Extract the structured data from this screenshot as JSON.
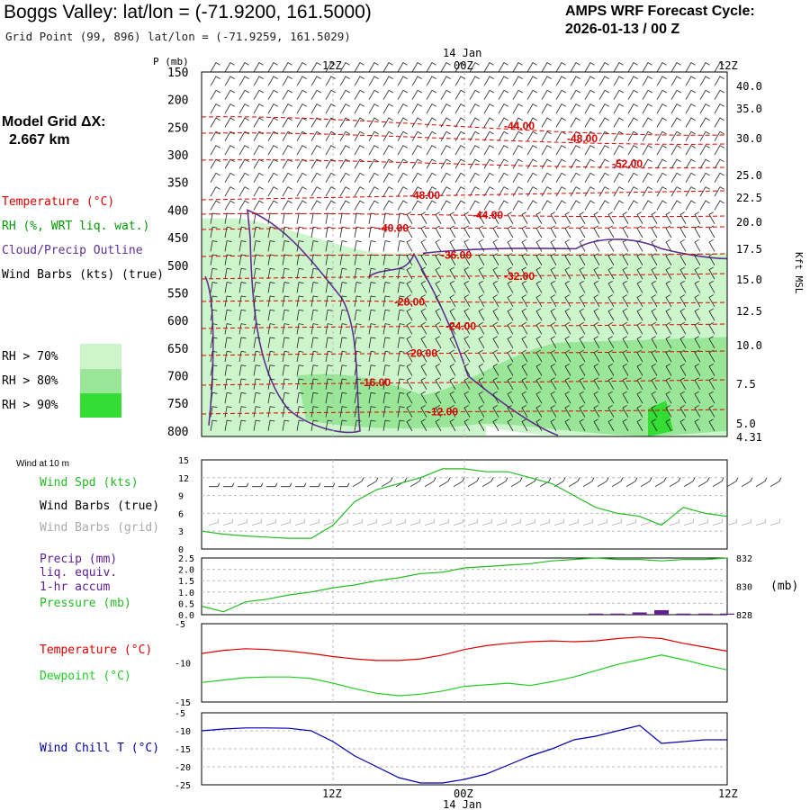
{
  "header": {
    "title": "Boggs Valley:  lat/lon = (-71.9200, 161.5000)",
    "subtitle": "Grid Point (99, 896) lat/lon = (-71.9259, 161.5029)",
    "cycle_line1": "AMPS WRF Forecast Cycle:",
    "cycle_line2": "2026-01-13 / 00  Z",
    "model_grid_label": "Model Grid ΔX:",
    "model_grid_value": "2.667 km"
  },
  "legend": {
    "temperature": "Temperature (°C)",
    "rh": "RH (%, WRT liq. wat.)",
    "cloud": "Cloud/Precip Outline",
    "barbs": "Wind Barbs (kts) (true)",
    "rh70": "RH > 70%",
    "rh80": "RH > 80%",
    "rh90": "RH > 90%"
  },
  "colors": {
    "temperature": "#dd0000",
    "rh": "#009900",
    "cloud": "#603090",
    "rh70": "#ccf5cc",
    "rh80": "#99e699",
    "rh90": "#33dd33",
    "wind_speed": "#22bb22",
    "grid_barbs": "#aaaaaa",
    "precip": "#602090",
    "dewpoint": "#22cc22",
    "windchill": "#0000aa"
  },
  "chart_data": [
    {
      "type": "line",
      "panel": "sounding",
      "pressure_axis_label": "P (mb)",
      "pressure_ticks": [
        "150",
        "200",
        "250",
        "300",
        "350",
        "400",
        "450",
        "500",
        "550",
        "600",
        "650",
        "700",
        "750",
        "800"
      ],
      "height_axis_label": "Kft MSL",
      "height_ticks": [
        "40.0",
        "35.0",
        "30.0",
        "25.0",
        "22.5",
        "20.0",
        "17.5",
        "15.0",
        "12.5",
        "10.0",
        "7.5",
        "5.0",
        "4.31"
      ],
      "time_ticks_top": [
        "12Z",
        "00Z",
        "12Z"
      ],
      "date_label": "14 Jan",
      "isotherms": [
        "-44.00",
        "-48.00",
        "-52.00",
        "-48.00",
        "-44.00",
        "-40.00",
        "-36.00",
        "-32.00",
        "-28.00",
        "-24.00",
        "-20.00",
        "-16.00",
        "-12.00"
      ]
    },
    {
      "type": "line",
      "panel": "wind",
      "title": "Wind at 10 m",
      "series_labels": [
        "Wind Spd (kts)",
        "Wind Barbs (true)",
        "Wind Barbs (grid)"
      ],
      "yticks": [
        "15",
        "12",
        "9",
        "6",
        "3",
        "0"
      ],
      "ylim": [
        0,
        15
      ],
      "x": [
        0,
        2,
        4,
        6,
        8,
        10,
        12,
        14,
        16,
        18,
        20,
        22,
        24,
        26,
        28,
        30,
        32,
        34,
        36,
        38,
        40,
        42,
        44,
        46,
        48
      ],
      "wind_speed": [
        3,
        2.5,
        2.2,
        2,
        1.8,
        1.8,
        4,
        8,
        10,
        11,
        12,
        13.5,
        13.5,
        13,
        13,
        12,
        11,
        9,
        7,
        6,
        5.5,
        4,
        7,
        6,
        5.5
      ]
    },
    {
      "type": "line",
      "panel": "precip_pressure",
      "series_labels": [
        "Precip (mm)",
        "liq. equiv.",
        "1-hr accum",
        "Pressure (mb)"
      ],
      "precip_ticks": [
        "2.5",
        "2.0",
        "1.5",
        "1.0",
        "0.5",
        "0.0"
      ],
      "pressure_ticks": [
        "832",
        "830",
        "828"
      ],
      "pressure_unit": "(mb)",
      "x": [
        0,
        2,
        4,
        6,
        8,
        10,
        12,
        14,
        16,
        18,
        20,
        22,
        24,
        26,
        28,
        30,
        32,
        34,
        36,
        38,
        40,
        42,
        44,
        46,
        48
      ],
      "pressure": [
        828.6,
        828.2,
        828.9,
        829.1,
        829.4,
        829.6,
        829.9,
        830.1,
        830.4,
        830.6,
        830.9,
        831.0,
        831.3,
        831.4,
        831.5,
        831.6,
        831.8,
        831.9,
        832.0,
        831.9,
        831.9,
        831.8,
        831.9,
        831.9,
        832.0
      ],
      "precip": [
        0,
        0,
        0,
        0,
        0,
        0,
        0,
        0,
        0,
        0,
        0,
        0,
        0,
        0,
        0,
        0,
        0,
        0,
        0.05,
        0.05,
        0.1,
        0.2,
        0.05,
        0.05,
        0.05
      ]
    },
    {
      "type": "line",
      "panel": "temperature",
      "series_labels": [
        "Temperature (°C)",
        "Dewpoint (°C)"
      ],
      "yticks": [
        "-5",
        "-10",
        "-15"
      ],
      "ylim": [
        -15,
        -5
      ],
      "x": [
        0,
        2,
        4,
        6,
        8,
        10,
        12,
        14,
        16,
        18,
        20,
        22,
        24,
        26,
        28,
        30,
        32,
        34,
        36,
        38,
        40,
        42,
        44,
        46,
        48
      ],
      "temperature": [
        -8.8,
        -8.4,
        -8.2,
        -8.3,
        -8.5,
        -8.8,
        -9.2,
        -9.5,
        -9.7,
        -9.7,
        -9.5,
        -9.0,
        -8.3,
        -7.8,
        -7.5,
        -7.3,
        -7.2,
        -7.3,
        -7.2,
        -6.9,
        -6.7,
        -6.9,
        -7.5,
        -8.0,
        -8.5
      ],
      "dewpoint": [
        -12.5,
        -12.2,
        -11.9,
        -11.8,
        -11.8,
        -12.0,
        -12.6,
        -13.3,
        -13.9,
        -14.2,
        -14.0,
        -13.6,
        -13.0,
        -12.8,
        -12.6,
        -12.9,
        -12.4,
        -11.8,
        -11.0,
        -10.2,
        -9.6,
        -9.0,
        -9.6,
        -10.3,
        -10.9
      ]
    },
    {
      "type": "line",
      "panel": "windchill",
      "series_labels": [
        "Wind Chill T (°C)"
      ],
      "yticks": [
        "-5",
        "-10",
        "-15",
        "-20",
        "-25"
      ],
      "ylim": [
        -25,
        -5
      ],
      "x": [
        0,
        2,
        4,
        6,
        8,
        10,
        12,
        14,
        16,
        18,
        20,
        22,
        24,
        26,
        28,
        30,
        32,
        34,
        36,
        38,
        40,
        42,
        44,
        46,
        48
      ],
      "windchill": [
        -10,
        -9.5,
        -9.2,
        -9.2,
        -9.3,
        -10,
        -13,
        -17,
        -20,
        -23,
        -24.5,
        -24.5,
        -23.5,
        -22,
        -19.5,
        -17,
        -15,
        -12.5,
        -11.5,
        -10,
        -8.5,
        -13.5,
        -13,
        -12.5,
        -12.5
      ],
      "time_ticks_bottom": [
        "12Z",
        "00Z",
        "12Z"
      ],
      "date_label": "14 Jan"
    }
  ]
}
